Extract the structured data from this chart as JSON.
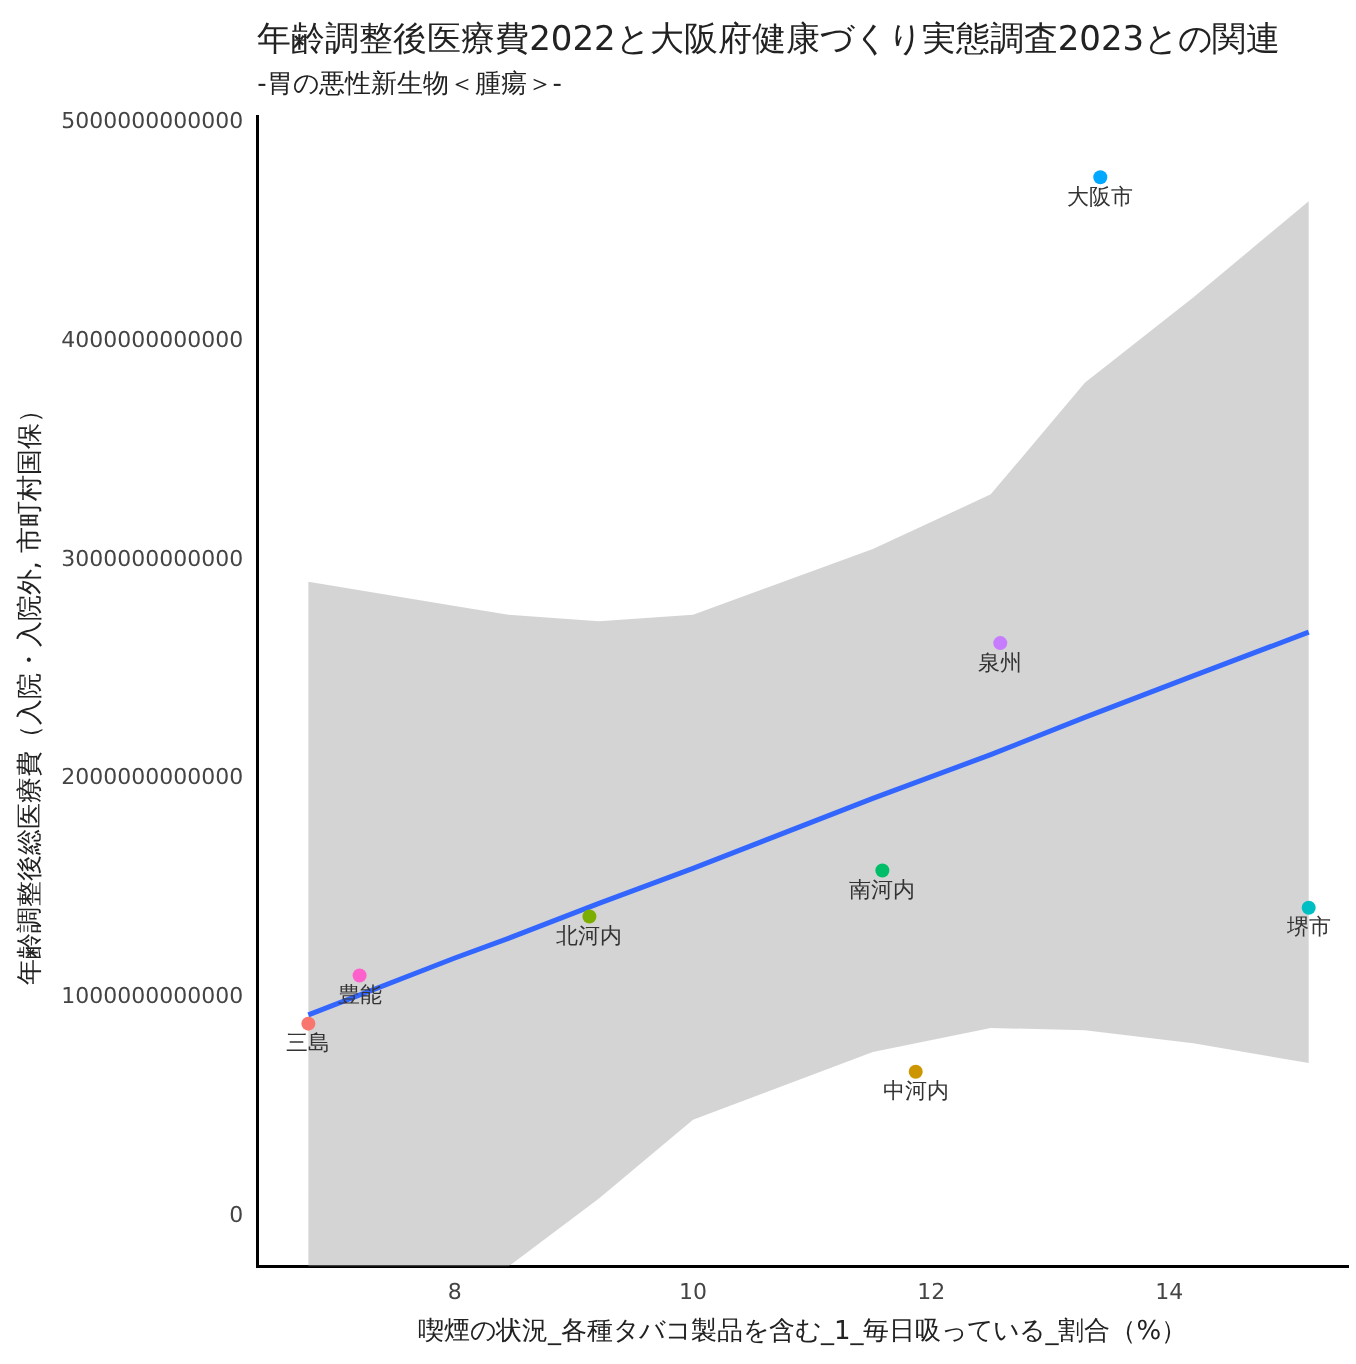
{
  "chart_data": {
    "type": "scatter",
    "title": "年齢調整後医療費2022と大阪府健康づくり実態調査2023との関連",
    "subtitle": "-胃の悪性新生物＜腫瘍＞-",
    "xlabel": "喫煙の状況_各種タバコ製品を含む_1_毎日吸っている_割合（%）",
    "ylabel": "年齢調整後総医療費（入院・入院外, 市町村国保）",
    "series": [
      {
        "name": "大阪市",
        "color": "#00a9ff",
        "x": [
          13.42
        ],
        "values": [
          4750000000000
        ]
      },
      {
        "name": "泉州",
        "color": "#c77cff",
        "x": [
          12.58
        ],
        "values": [
          2620000000000
        ]
      },
      {
        "name": "南河内",
        "color": "#00be67",
        "x": [
          11.59
        ],
        "values": [
          1580000000000
        ]
      },
      {
        "name": "堺市",
        "color": "#00bfc4",
        "x": [
          15.17
        ],
        "values": [
          1410000000000
        ]
      },
      {
        "name": "北河内",
        "color": "#7cae00",
        "x": [
          9.13
        ],
        "values": [
          1370000000000
        ]
      },
      {
        "name": "豊能",
        "color": "#ff61cc",
        "x": [
          7.2
        ],
        "values": [
          1100000000000
        ]
      },
      {
        "name": "三島",
        "color": "#f8766d",
        "x": [
          6.77
        ],
        "values": [
          880000000000
        ]
      },
      {
        "name": "中河内",
        "color": "#cd9600",
        "x": [
          11.87
        ],
        "values": [
          660000000000
        ]
      },
      {
        "type": "line",
        "marker": "none",
        "color": "#3366ff",
        "x": [
          6.77,
          8.0,
          8.45,
          9.21,
          10,
          11.51,
          12.5,
          13.29,
          14.2,
          15.17
        ],
        "values": [
          920000000000,
          1180000000000,
          1270000000000,
          1430000000000,
          1590000000000,
          1910000000000,
          2110000000000,
          2280000000000,
          2470000000000,
          2670000000000
        ],
        "upper": [
          2900000000000,
          2790000000000,
          2750000000000,
          2720000000000,
          2750000000000,
          3050000000000,
          3300000000000,
          3810000000000,
          4200000000000,
          4640000000000
        ],
        "lower": [
          -230000000000,
          -230000000000,
          -230000000000,
          80000000000,
          440000000000,
          750000000000,
          860000000000,
          850000000000,
          790000000000,
          700000000000
        ]
      }
    ],
    "xlim": [
      6.34,
      15.5
    ],
    "xticks": [
      8,
      10,
      12,
      14
    ],
    "ylim": [
      -230000000000,
      5030000000000
    ],
    "yticks": [
      0,
      1000000000000,
      2000000000000,
      3000000000000,
      4000000000000,
      5000000000000
    ],
    "grid": false,
    "legend": false,
    "marker": "circle"
  }
}
